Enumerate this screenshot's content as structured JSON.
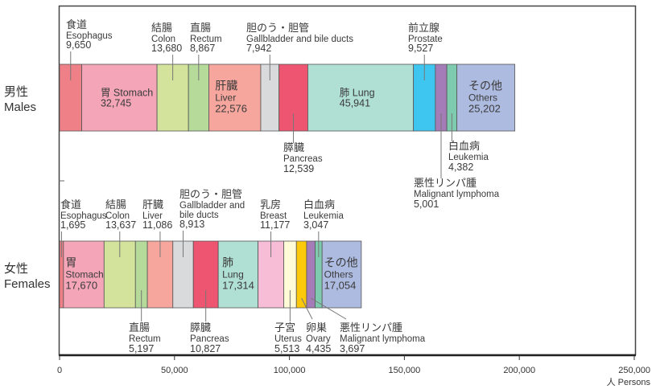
{
  "chart_data": {
    "type": "bar",
    "stacked": true,
    "orientation": "horizontal",
    "title": "",
    "xlabel": "人 Persons",
    "ylabel": "",
    "xlim": [
      0,
      250000
    ],
    "x_ticks": [
      "0",
      "50,000",
      "100,000",
      "150,000",
      "200,000",
      "250,000"
    ],
    "x_tick_values": [
      0,
      50000,
      100000,
      150000,
      200000,
      250000
    ],
    "grid": false,
    "legend": "none",
    "groups": [
      {
        "name_jp": "男性",
        "name_en": "Males",
        "segments": [
          {
            "jp": "食道",
            "en": "Esophagus",
            "value": 9650,
            "value_label": "9,650",
            "color": "#f08088",
            "label_pos": "above",
            "inside": false
          },
          {
            "jp": "胃",
            "en": "Stomach",
            "value": 32745,
            "value_label": "32,745",
            "color": "#f4a6b8",
            "label_pos": "inside",
            "inside": true
          },
          {
            "jp": "結腸",
            "en": "Colon",
            "value": 13680,
            "value_label": "13,680",
            "color": "#d3e39b",
            "label_pos": "above",
            "inside": false
          },
          {
            "jp": "直腸",
            "en": "Rectum",
            "value": 8867,
            "value_label": "8,867",
            "color": "#b6da9a",
            "label_pos": "above",
            "inside": false
          },
          {
            "jp": "肝臓",
            "en": "Liver",
            "value": 22576,
            "value_label": "22,576",
            "color": "#f7a69e",
            "label_pos": "inside",
            "inside": true
          },
          {
            "jp": "胆のう・胆管",
            "en": "Gallbladder and bile ducts",
            "value": 7942,
            "value_label": "7,942",
            "color": "#d9dadc",
            "label_pos": "above",
            "inside": false
          },
          {
            "jp": "膵臓",
            "en": "Pancreas",
            "value": 12539,
            "value_label": "12,539",
            "color": "#ee5570",
            "label_pos": "below",
            "inside": false
          },
          {
            "jp": "肺",
            "en": "Lung",
            "value": 45941,
            "value_label": "45,941",
            "color": "#b0dfd3",
            "label_pos": "inside",
            "inside": true
          },
          {
            "jp": "前立腺",
            "en": "Prostate",
            "value": 9527,
            "value_label": "9,527",
            "color": "#3ec6f0",
            "label_pos": "above",
            "inside": false
          },
          {
            "jp": "悪性リンパ腫",
            "en": "Malignant lymphoma",
            "value": 5001,
            "value_label": "5,001",
            "color": "#a47db8",
            "label_pos": "below",
            "inside": false
          },
          {
            "jp": "白血病",
            "en": "Leukemia",
            "value": 4382,
            "value_label": "4,382",
            "color": "#7fcbb0",
            "label_pos": "below",
            "inside": false
          },
          {
            "jp": "その他",
            "en": "Others",
            "value": 25202,
            "value_label": "25,202",
            "color": "#aebbe0",
            "label_pos": "inside",
            "inside": true
          }
        ]
      },
      {
        "name_jp": "女性",
        "name_en": "Females",
        "segments": [
          {
            "jp": "食道",
            "en": "Esophagus",
            "value": 1695,
            "value_label": "1,695",
            "color": "#f08088",
            "label_pos": "above",
            "inside": false
          },
          {
            "jp": "胃",
            "en": "Stomach",
            "value": 17670,
            "value_label": "17,670",
            "color": "#f4a6b8",
            "label_pos": "inside",
            "inside": true
          },
          {
            "jp": "結腸",
            "en": "Colon",
            "value": 13637,
            "value_label": "13,637",
            "color": "#d3e39b",
            "label_pos": "above",
            "inside": false
          },
          {
            "jp": "直腸",
            "en": "Rectum",
            "value": 5197,
            "value_label": "5,197",
            "color": "#b6da9a",
            "label_pos": "below",
            "inside": false
          },
          {
            "jp": "肝臓",
            "en": "Liver",
            "value": 11086,
            "value_label": "11,086",
            "color": "#f7a69e",
            "label_pos": "above",
            "inside": false
          },
          {
            "jp": "胆のう・胆管",
            "en": "Gallbladder and bile ducts",
            "en_lines": [
              "Gallbladder and",
              "bile ducts"
            ],
            "value": 8913,
            "value_label": "8,913",
            "color": "#d9dadc",
            "label_pos": "above",
            "inside": false
          },
          {
            "jp": "膵臓",
            "en": "Pancreas",
            "value": 10827,
            "value_label": "10,827",
            "color": "#ee5570",
            "label_pos": "below",
            "inside": false
          },
          {
            "jp": "肺",
            "en": "Lung",
            "value": 17314,
            "value_label": "17,314",
            "color": "#b0dfd3",
            "label_pos": "inside",
            "inside": true
          },
          {
            "jp": "乳房",
            "en": "Breast",
            "value": 11177,
            "value_label": "11,177",
            "color": "#f7bcd6",
            "label_pos": "above",
            "inside": false
          },
          {
            "jp": "子宮",
            "en": "Uterus",
            "value": 5513,
            "value_label": "5,513",
            "color": "#fffbd6",
            "label_pos": "below",
            "inside": false
          },
          {
            "jp": "卵巣",
            "en": "Ovary",
            "value": 4435,
            "value_label": "4,435",
            "color": "#fdc90a",
            "label_pos": "below",
            "inside": false
          },
          {
            "jp": "悪性リンパ腫",
            "en": "Malignant lymphoma",
            "value": 3697,
            "value_label": "3,697",
            "color": "#a47db8",
            "label_pos": "below",
            "inside": false
          },
          {
            "jp": "白血病",
            "en": "Leukemia",
            "value": 3047,
            "value_label": "3,047",
            "color": "#7fcbb0",
            "label_pos": "above",
            "inside": false
          },
          {
            "jp": "その他",
            "en": "Others",
            "value": 17054,
            "value_label": "17,054",
            "color": "#aebbe0",
            "label_pos": "inside",
            "inside": true
          }
        ]
      }
    ]
  }
}
